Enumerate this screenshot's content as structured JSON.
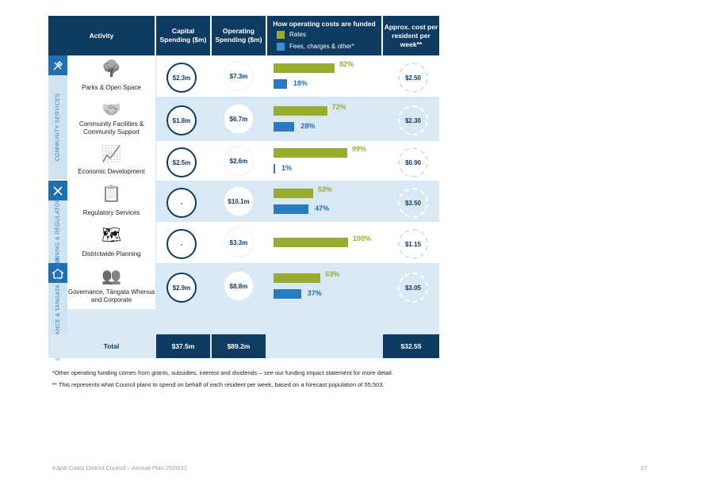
{
  "header": {
    "activity": "Activity",
    "capital": "Capital Spending ($m)",
    "operating": "Operating Spending ($m)",
    "funded": "How operating costs are funded",
    "legend_rates": "Rates",
    "legend_fees": "Fees, charges & other*",
    "per_resident": "Approx. cost per resident per week**"
  },
  "colors": {
    "navy": "#0e3b61",
    "rates": "#99ac2d",
    "fees": "#2a7ac3",
    "light_blue": "#d8e9f5"
  },
  "groups": [
    {
      "label": "COMMUNITY SERVICES",
      "icon": "tools-icon"
    },
    {
      "label": "PLANNING & REGULATORY",
      "icon": "ruler-pencil-icon"
    },
    {
      "label": "GOVERNANCE & TANGATA WHENUA",
      "icon": "meeting-house-icon"
    }
  ],
  "rows": [
    {
      "label": "Parks & Open Space",
      "icon": "tree-icon",
      "capital": "$2.3m",
      "operating": "$7.3m",
      "rates_pct": 82,
      "rates_label": "82%",
      "fees_pct": 18,
      "fees_label": "18%",
      "weekly": "$2.50"
    },
    {
      "label": "Community Facilities & Community Support",
      "icon": "handshake-icon",
      "capital": "$1.8m",
      "operating": "$6.7m",
      "rates_pct": 72,
      "rates_label": "72%",
      "fees_pct": 28,
      "fees_label": "28%",
      "weekly": "$2.30"
    },
    {
      "label": "Economic Development",
      "icon": "growth-chart-icon",
      "capital": "$2.5m",
      "operating": "$2.6m",
      "rates_pct": 99,
      "rates_label": "99%",
      "fees_pct": 1,
      "fees_label": "1%",
      "weekly": "$0.90"
    },
    {
      "label": "Regulatory Services",
      "icon": "clipboard-check-icon",
      "capital": "-",
      "operating": "$10.1m",
      "rates_pct": 53,
      "rates_label": "53%",
      "fees_pct": 47,
      "fees_label": "47%",
      "weekly": "$3.50"
    },
    {
      "label": "Districtwide Planning",
      "icon": "map-icon",
      "capital": "-",
      "operating": "$3.3m",
      "rates_pct": 100,
      "rates_label": "100%",
      "fees_pct": 0,
      "fees_label": "",
      "weekly": "$1.15"
    },
    {
      "label": "Governance, Tāngata Whenua and Corporate",
      "icon": "people-group-icon",
      "capital": "$2.9m",
      "operating": "$8.8m",
      "rates_pct": 63,
      "rates_label": "63%",
      "fees_pct": 37,
      "fees_label": "37%",
      "weekly": "$3.05"
    }
  ],
  "total": {
    "label": "Total",
    "capital": "$37.5m",
    "operating": "$89.2m",
    "weekly": "$32.55"
  },
  "footnotes": [
    "*Other operating funding comes from grants, subsidies, interest and dividends – see our funding impact statement for more detail.",
    "** This represents what Council plans to spend on behalf of each resident per week, based on a forecast population of 55,503."
  ],
  "page_footer": {
    "title": "Kāpiti Coast District Council – Annual Plan 2020/21",
    "page_number": "17"
  }
}
